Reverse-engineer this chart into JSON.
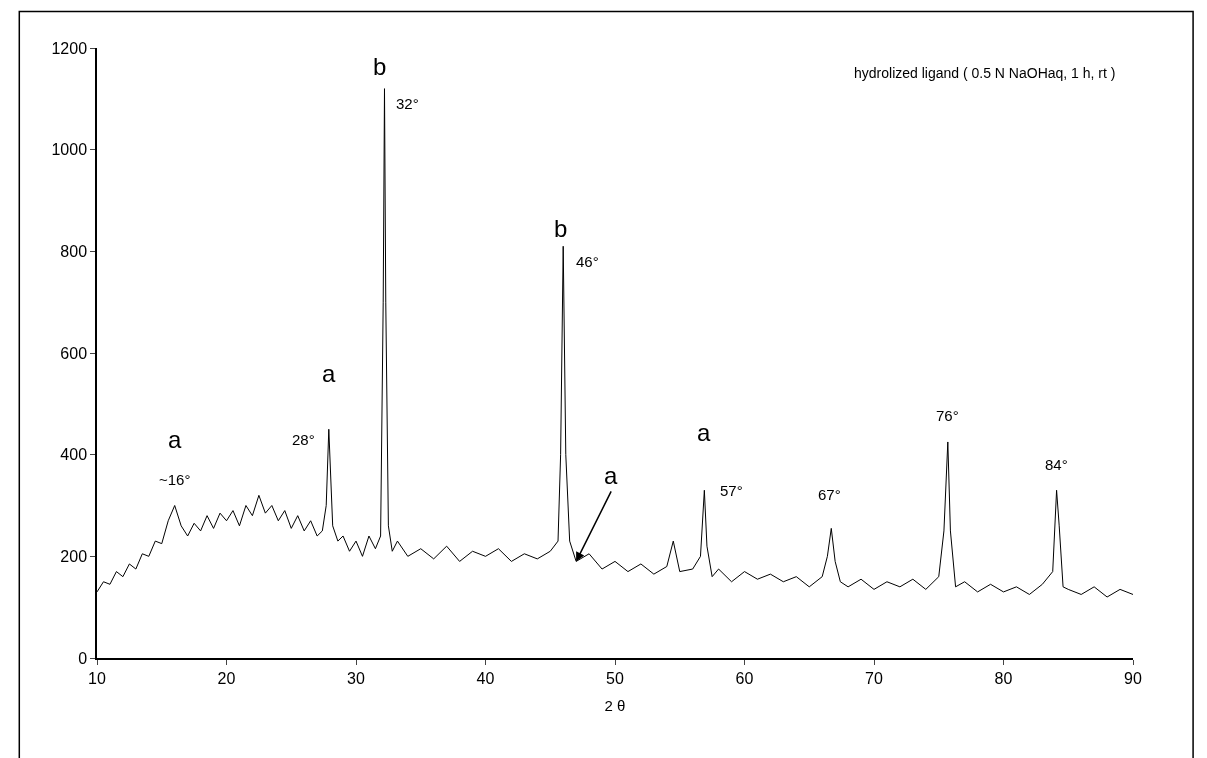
{
  "chart_data": {
    "type": "line",
    "xlabel": "2 θ",
    "xlim": [
      10,
      90
    ],
    "xticks": [
      10,
      20,
      30,
      40,
      50,
      60,
      70,
      80,
      90
    ],
    "ylim": [
      0,
      1200
    ],
    "yticks": [
      0,
      200,
      400,
      600,
      800,
      1000,
      1200
    ],
    "marker": "none",
    "line_style": "solid",
    "series": [
      {
        "color": "#000000",
        "x": [
          10,
          10.5,
          11,
          11.5,
          12,
          12.5,
          13,
          13.5,
          14,
          14.5,
          15,
          15.5,
          16,
          16.5,
          17,
          17.5,
          18,
          18.5,
          19,
          19.5,
          20,
          20.5,
          21,
          21.5,
          22,
          22.5,
          23,
          23.5,
          24,
          24.5,
          25,
          25.5,
          26,
          26.5,
          27,
          27.4,
          27.7,
          27.9,
          28.2,
          28.6,
          29,
          29.5,
          30,
          30.5,
          31,
          31.5,
          31.9,
          32.1,
          32.2,
          32.3,
          32.5,
          32.8,
          33.2,
          34,
          35,
          36,
          37,
          38,
          39,
          40,
          41,
          42,
          43,
          44,
          45,
          45.6,
          45.8,
          46.0,
          46.2,
          46.5,
          47,
          48,
          49,
          50,
          51,
          52,
          53,
          54,
          54.5,
          55,
          56,
          56.6,
          56.9,
          57.1,
          57.5,
          58,
          59,
          60,
          61,
          62,
          63,
          64,
          65,
          66,
          66.4,
          66.7,
          67.0,
          67.4,
          68,
          69,
          70,
          71,
          72,
          73,
          74,
          75,
          75.4,
          75.7,
          75.9,
          76.3,
          77,
          78,
          79,
          80,
          81,
          82,
          83,
          83.8,
          84.1,
          84.3,
          84.6,
          85,
          86,
          87,
          88,
          89,
          90
        ],
        "values": [
          130,
          150,
          145,
          170,
          160,
          185,
          175,
          205,
          200,
          230,
          225,
          270,
          300,
          260,
          240,
          265,
          250,
          280,
          255,
          285,
          270,
          290,
          260,
          300,
          280,
          320,
          285,
          300,
          270,
          290,
          255,
          280,
          250,
          270,
          240,
          250,
          300,
          450,
          260,
          230,
          240,
          210,
          230,
          200,
          240,
          215,
          240,
          700,
          1120,
          700,
          260,
          210,
          230,
          200,
          215,
          195,
          220,
          190,
          210,
          200,
          215,
          190,
          205,
          195,
          210,
          230,
          400,
          810,
          400,
          230,
          190,
          205,
          175,
          190,
          170,
          185,
          165,
          180,
          230,
          170,
          175,
          200,
          330,
          220,
          160,
          175,
          150,
          170,
          155,
          165,
          150,
          160,
          140,
          160,
          200,
          255,
          190,
          150,
          140,
          155,
          135,
          150,
          140,
          155,
          135,
          160,
          250,
          425,
          250,
          140,
          150,
          130,
          145,
          130,
          140,
          125,
          145,
          170,
          330,
          260,
          140,
          135,
          125,
          140,
          120,
          135,
          125
        ]
      }
    ],
    "annotations": [
      "hydrolized ligand ( 0.5 N NaOHaq, 1 h, rt )",
      {
        "text": "a",
        "x": 16,
        "y": 300
      },
      {
        "text": "~16°",
        "x": 16,
        "y": 300
      },
      {
        "text": "a",
        "x": 27.9,
        "y": 450
      },
      {
        "text": "28°",
        "x": 27.9,
        "y": 450
      },
      {
        "text": "b",
        "x": 32.2,
        "y": 1120
      },
      {
        "text": "32°",
        "x": 32.2,
        "y": 1120
      },
      {
        "text": "b",
        "x": 46.0,
        "y": 810
      },
      {
        "text": "46°",
        "x": 46.0,
        "y": 810
      },
      {
        "text": "a",
        "x": 47,
        "y": 190
      },
      {
        "text": "a",
        "x": 56.9,
        "y": 330
      },
      {
        "text": "57°",
        "x": 56.9,
        "y": 330
      },
      {
        "text": "67°",
        "x": 66.7,
        "y": 255
      },
      {
        "text": "76°",
        "x": 75.7,
        "y": 425
      },
      {
        "text": "84°",
        "x": 84.1,
        "y": 330
      }
    ]
  }
}
